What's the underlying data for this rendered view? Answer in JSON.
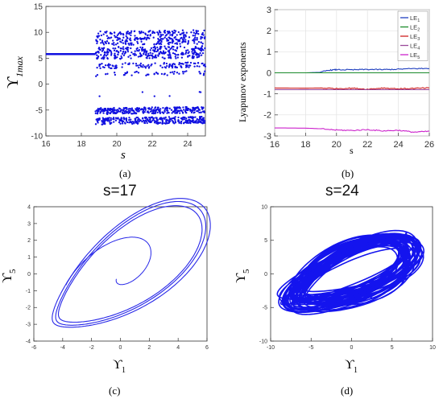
{
  "panels": {
    "a": {
      "label": "(a)"
    },
    "b": {
      "label": "(b)"
    },
    "c": {
      "label": "(c)",
      "title": "s=17"
    },
    "d": {
      "label": "(d)",
      "title": "s=24"
    }
  },
  "chart_data": [
    {
      "type": "scatter",
      "panel": "a",
      "xlabel": "s",
      "ylabel": "ϒ",
      "ylabel_sub": "1max",
      "xlim": [
        16,
        25
      ],
      "ylim": [
        -10,
        15
      ],
      "xticks": [
        16,
        18,
        20,
        22,
        24
      ],
      "yticks": [
        -10,
        -5,
        0,
        5,
        10,
        15
      ],
      "color": "#1010e0",
      "periodic_value": 5.8,
      "periodic_range": [
        16,
        18.8
      ],
      "chaotic_range": [
        18.8,
        25
      ],
      "bands": [
        {
          "y": [
            7.5,
            10.2
          ],
          "density": "dense"
        },
        {
          "y": [
            4.8,
            7.2
          ],
          "density": "dense"
        },
        {
          "y": [
            3.0,
            4.0
          ],
          "density": "medium"
        },
        {
          "y": [
            1.5,
            2.4
          ],
          "density": "sparse"
        },
        {
          "y": [
            -5.8,
            -4.6
          ],
          "density": "dense"
        },
        {
          "y": [
            -7.8,
            -6.5
          ],
          "density": "dense"
        },
        {
          "y": [
            -2.6,
            -1.6
          ],
          "density": "rare"
        }
      ]
    },
    {
      "type": "line",
      "panel": "b",
      "xlabel": "s",
      "ylabel": "Lyapunov exponents",
      "xlim": [
        16,
        26
      ],
      "ylim": [
        -3,
        3
      ],
      "xticks": [
        16,
        18,
        20,
        22,
        24,
        26
      ],
      "yticks": [
        -3,
        -2,
        -1,
        0,
        1,
        2,
        3
      ],
      "grid": true,
      "legend": "top-right",
      "series": [
        {
          "name": "LE",
          "sub": "1",
          "color": "#1f3fbf",
          "x": [
            16,
            18,
            18.9,
            19.5,
            20,
            21,
            22,
            23,
            24,
            25,
            26
          ],
          "values": [
            0.0,
            0.0,
            0.02,
            0.12,
            0.15,
            0.14,
            0.16,
            0.15,
            0.17,
            0.2,
            0.2
          ]
        },
        {
          "name": "LE",
          "sub": "2",
          "color": "#1a8a2a",
          "x": [
            16,
            20,
            26
          ],
          "values": [
            0.0,
            0.0,
            0.0
          ]
        },
        {
          "name": "LE",
          "sub": "3",
          "color": "#d02020",
          "x": [
            16,
            18,
            19,
            20,
            21,
            22,
            23,
            24,
            25,
            26
          ],
          "values": [
            -0.72,
            -0.73,
            -0.72,
            -0.75,
            -0.73,
            -0.78,
            -0.72,
            -0.76,
            -0.74,
            -0.72
          ]
        },
        {
          "name": "LE",
          "sub": "4",
          "color": "#9a4a9a",
          "x": [
            16,
            26
          ],
          "values": [
            -0.8,
            -0.8
          ]
        },
        {
          "name": "LE",
          "sub": "5",
          "color": "#cc22cc",
          "x": [
            16,
            18,
            19,
            20,
            21,
            22,
            23,
            24,
            25,
            26
          ],
          "values": [
            -2.62,
            -2.63,
            -2.66,
            -2.72,
            -2.74,
            -2.7,
            -2.76,
            -2.73,
            -2.82,
            -2.78
          ]
        }
      ]
    },
    {
      "type": "line",
      "panel": "c",
      "title": "s=17",
      "xlabel": "ϒ",
      "xlabel_sub": "1",
      "ylabel": "ϒ",
      "ylabel_sub": "5",
      "xlim": [
        -6,
        6
      ],
      "ylim": [
        -4,
        4
      ],
      "xticks": [
        -6,
        -4,
        -2,
        0,
        2,
        4,
        6
      ],
      "yticks": [
        -4,
        -3,
        -2,
        -1,
        0,
        1,
        2,
        3,
        4
      ],
      "color": "#2828e8",
      "description": "limit cycle (periodic orbit) with transient from origin"
    },
    {
      "type": "line",
      "panel": "d",
      "title": "s=24",
      "xlabel": "ϒ",
      "xlabel_sub": "1",
      "ylabel": "ϒ",
      "ylabel_sub": "5",
      "xlim": [
        -10,
        10
      ],
      "ylim": [
        -10,
        10
      ],
      "xticks": [
        -10,
        -5,
        0,
        5,
        10
      ],
      "yticks": [
        -10,
        -5,
        0,
        5,
        10
      ],
      "color": "#1414ee",
      "description": "chaotic attractor"
    }
  ]
}
